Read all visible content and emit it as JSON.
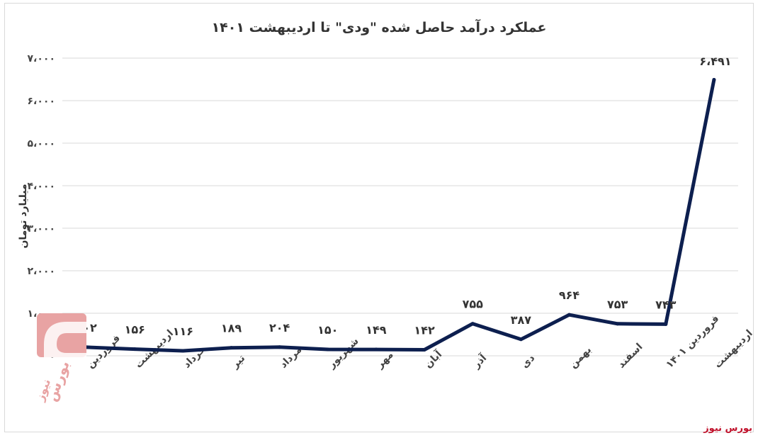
{
  "chart_data": {
    "type": "line",
    "title": "عملکرد درآمد حاصل شده \"ودی\" تا اردیبهشت ۱۴۰۱",
    "ylabel": "میلیارد تومان",
    "xlabel": "",
    "ylim": [
      0,
      7000
    ],
    "grid": true,
    "legend": "none",
    "y_ticks": [
      {
        "value": 0,
        "label": "۰"
      },
      {
        "value": 1000,
        "label": "۱،۰۰۰"
      },
      {
        "value": 2000,
        "label": "۲،۰۰۰"
      },
      {
        "value": 3000,
        "label": "۳،۰۰۰"
      },
      {
        "value": 4000,
        "label": "۴،۰۰۰"
      },
      {
        "value": 5000,
        "label": "۵،۰۰۰"
      },
      {
        "value": 6000,
        "label": "۶،۰۰۰"
      },
      {
        "value": 7000,
        "label": "۷،۰۰۰"
      }
    ],
    "categories": [
      "فروردین",
      "اردیبهشت",
      "خرداد",
      "تیر",
      "مرداد",
      "شهریور",
      "مهر",
      "آبان",
      "آذر",
      "دی",
      "بهمن",
      "اسفند",
      "فروردین ۱۴۰۱",
      "اردیبهشت"
    ],
    "series": [
      {
        "values": [
          202,
          156,
          116,
          189,
          204,
          150,
          149,
          142,
          755,
          387,
          964,
          753,
          743,
          6491
        ],
        "labels": [
          "۲۰۲",
          "۱۵۶",
          "۱۱۶",
          "۱۸۹",
          "۲۰۴",
          "۱۵۰",
          "۱۴۹",
          "۱۴۲",
          "۷۵۵",
          "۳۸۷",
          "۹۶۴",
          "۷۵۳",
          "۷۴۳",
          "۶،۴۹۱"
        ],
        "color": "#0d1f4f"
      }
    ]
  },
  "source": "بورس نیوز",
  "watermark": {
    "text_line1": "بورس",
    "text_line2": "نیوز"
  },
  "colors": {
    "series": "#0d1f4f",
    "grid": "#d9d9d9",
    "watermark": "#e8a3a3",
    "source": "#c0102a"
  }
}
